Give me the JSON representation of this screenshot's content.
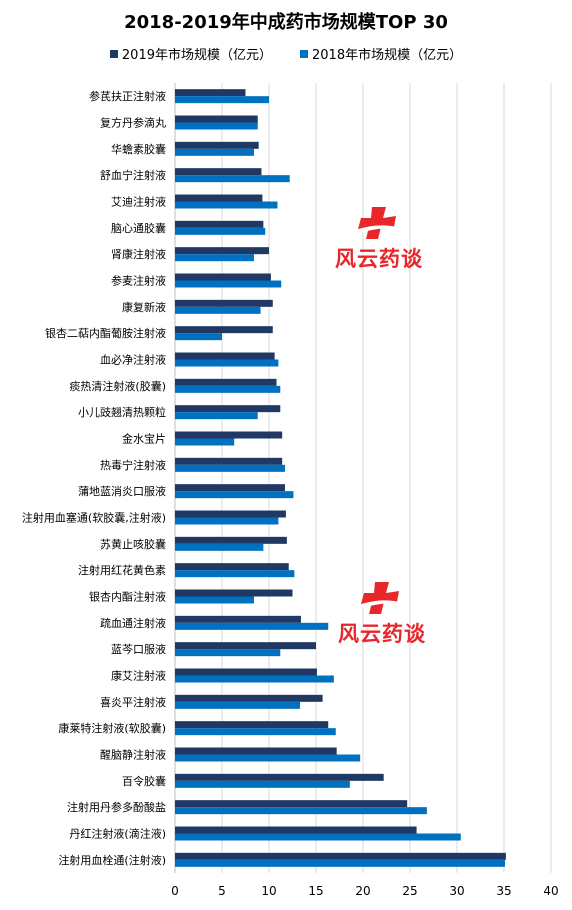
{
  "chart_data": {
    "type": "bar",
    "orientation": "horizontal",
    "title": "2018-2019年中成药市场规模TOP 30",
    "categories": [
      "参芪扶正注射液",
      "复方丹参滴丸",
      "华蟾素胶囊",
      "舒血宁注射液",
      "艾迪注射液",
      "脑心通胶囊",
      "肾康注射液",
      "参麦注射液",
      "康复新液",
      "银杏二萜内酯葡胺注射液",
      "血必净注射液",
      "痰热清注射液(胶囊)",
      "小儿豉翘清热颗粒",
      "金水宝片",
      "热毒宁注射液",
      "蒲地蓝消炎口服液",
      "注射用血塞通(软胶囊,注射液)",
      "苏黄止咳胶囊",
      "注射用红花黄色素",
      "银杏内酯注射液",
      "疏血通注射液",
      "蓝芩口服液",
      "康艾注射液",
      "喜炎平注射液",
      "康莱特注射液(软胶囊)",
      "醒脑静注射液",
      "百令胶囊",
      "注射用丹参多酚酸盐",
      "丹红注射液(滴注液)",
      "注射用血栓通(注射液)"
    ],
    "series": [
      {
        "name": "2019年市场规模（亿元）",
        "color": "#1f3864",
        "values": [
          7.5,
          8.8,
          8.9,
          9.2,
          9.3,
          9.4,
          10.0,
          10.2,
          10.4,
          10.4,
          10.6,
          10.8,
          11.2,
          11.4,
          11.4,
          11.7,
          11.8,
          11.9,
          12.1,
          12.5,
          13.4,
          15.0,
          15.1,
          15.7,
          16.3,
          17.2,
          22.2,
          24.7,
          25.7,
          35.2
        ]
      },
      {
        "name": "2018年市场规模（亿元）",
        "color": "#0070c0",
        "values": [
          10.0,
          8.8,
          8.4,
          12.2,
          10.9,
          9.6,
          8.4,
          11.3,
          9.1,
          5.0,
          11.0,
          11.2,
          8.8,
          6.3,
          11.7,
          12.6,
          11.0,
          9.4,
          12.7,
          8.4,
          16.3,
          11.2,
          16.9,
          13.3,
          17.1,
          19.7,
          18.6,
          26.8,
          30.4,
          35.1
        ]
      }
    ],
    "xlim": [
      0,
      40
    ],
    "xticks": [
      "0",
      "5",
      "10",
      "15",
      "20",
      "25",
      "30",
      "35",
      "40"
    ],
    "grid": true,
    "legend_position": "top"
  },
  "watermark": {
    "text": "风云药谈",
    "color": "#e8272b"
  }
}
